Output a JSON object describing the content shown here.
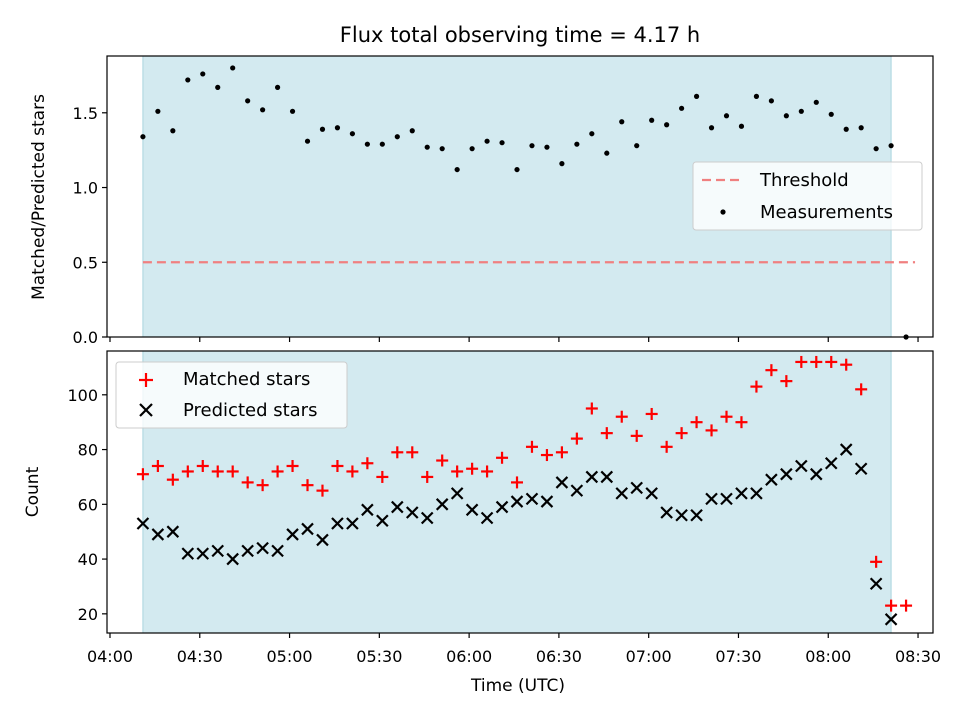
{
  "figure": {
    "title": "Flux total observing time = 4.17 h",
    "xlabel": "Time (UTC)",
    "x_ticks": [
      "04:00",
      "04:30",
      "05:00",
      "05:30",
      "06:00",
      "06:30",
      "07:00",
      "07:30",
      "08:00",
      "08:30"
    ],
    "observing_window": {
      "start": "04:11",
      "end": "08:21"
    },
    "observing_window_color": "#d3eaf0"
  },
  "chart_data": [
    {
      "type": "scatter",
      "panel": "top",
      "title": "Flux total observing time = 4.17 h",
      "ylabel": "Matched/Predicted stars",
      "xlim": [
        "03:59",
        "08:35"
      ],
      "ylim": [
        0.0,
        1.88
      ],
      "y_ticks": [
        "0.0",
        "0.5",
        "1.0",
        "1.5"
      ],
      "legend_position": "center-right",
      "threshold": {
        "name": "Threshold",
        "value": 0.5,
        "x_start": "04:11",
        "x_end": "08:29",
        "color": "#f08080"
      },
      "series": [
        {
          "name": "Measurements",
          "color": "#000000",
          "x": [
            "04:11",
            "04:16",
            "04:21",
            "04:26",
            "04:31",
            "04:36",
            "04:41",
            "04:46",
            "04:51",
            "04:56",
            "05:01",
            "05:06",
            "05:11",
            "05:16",
            "05:21",
            "05:26",
            "05:31",
            "05:36",
            "05:41",
            "05:46",
            "05:51",
            "05:56",
            "06:01",
            "06:06",
            "06:11",
            "06:16",
            "06:21",
            "06:26",
            "06:31",
            "06:36",
            "06:41",
            "06:46",
            "06:51",
            "06:56",
            "07:01",
            "07:06",
            "07:11",
            "07:16",
            "07:21",
            "07:26",
            "07:31",
            "07:36",
            "07:41",
            "07:46",
            "07:51",
            "07:56",
            "08:01",
            "08:06",
            "08:11",
            "08:16",
            "08:21",
            "08:26"
          ],
          "y": [
            1.34,
            1.51,
            1.38,
            1.72,
            1.76,
            1.67,
            1.8,
            1.58,
            1.52,
            1.67,
            1.51,
            1.31,
            1.39,
            1.4,
            1.36,
            1.29,
            1.29,
            1.34,
            1.38,
            1.27,
            1.26,
            1.12,
            1.26,
            1.31,
            1.3,
            1.12,
            1.28,
            1.27,
            1.16,
            1.29,
            1.36,
            1.23,
            1.44,
            1.28,
            1.45,
            1.42,
            1.53,
            1.61,
            1.4,
            1.48,
            1.41,
            1.61,
            1.58,
            1.48,
            1.51,
            1.57,
            1.49,
            1.39,
            1.4,
            1.26,
            1.28,
            0.0
          ]
        }
      ]
    },
    {
      "type": "scatter",
      "panel": "bottom",
      "ylabel": "Count",
      "xlabel": "Time (UTC)",
      "xlim": [
        "03:59",
        "08:35"
      ],
      "ylim": [
        13,
        116
      ],
      "y_ticks": [
        "20",
        "40",
        "60",
        "80",
        "100"
      ],
      "legend_position": "top-left",
      "series": [
        {
          "name": "Matched stars",
          "marker": "plus",
          "color": "#ff0000",
          "x": [
            "04:11",
            "04:16",
            "04:21",
            "04:26",
            "04:31",
            "04:36",
            "04:41",
            "04:46",
            "04:51",
            "04:56",
            "05:01",
            "05:06",
            "05:11",
            "05:16",
            "05:21",
            "05:26",
            "05:31",
            "05:36",
            "05:41",
            "05:46",
            "05:51",
            "05:56",
            "06:01",
            "06:06",
            "06:11",
            "06:16",
            "06:21",
            "06:26",
            "06:31",
            "06:36",
            "06:41",
            "06:46",
            "06:51",
            "06:56",
            "07:01",
            "07:06",
            "07:11",
            "07:16",
            "07:21",
            "07:26",
            "07:31",
            "07:36",
            "07:41",
            "07:46",
            "07:51",
            "07:56",
            "08:01",
            "08:06",
            "08:11",
            "08:16",
            "08:21",
            "08:26"
          ],
          "y": [
            71,
            74,
            69,
            72,
            74,
            72,
            72,
            68,
            67,
            72,
            74,
            67,
            65,
            74,
            72,
            75,
            70,
            79,
            79,
            70,
            76,
            72,
            73,
            72,
            77,
            68,
            81,
            78,
            79,
            84,
            95,
            86,
            92,
            85,
            93,
            81,
            86,
            90,
            87,
            92,
            90,
            103,
            109,
            105,
            112,
            112,
            112,
            111,
            102,
            39,
            23,
            23
          ]
        },
        {
          "name": "Predicted stars",
          "marker": "x",
          "color": "#000000",
          "x": [
            "04:11",
            "04:16",
            "04:21",
            "04:26",
            "04:31",
            "04:36",
            "04:41",
            "04:46",
            "04:51",
            "04:56",
            "05:01",
            "05:06",
            "05:11",
            "05:16",
            "05:21",
            "05:26",
            "05:31",
            "05:36",
            "05:41",
            "05:46",
            "05:51",
            "05:56",
            "06:01",
            "06:06",
            "06:11",
            "06:16",
            "06:21",
            "06:26",
            "06:31",
            "06:36",
            "06:41",
            "06:46",
            "06:51",
            "06:56",
            "07:01",
            "07:06",
            "07:11",
            "07:16",
            "07:21",
            "07:26",
            "07:31",
            "07:36",
            "07:41",
            "07:46",
            "07:51",
            "07:56",
            "08:01",
            "08:06",
            "08:11",
            "08:16",
            "08:21"
          ],
          "y": [
            53,
            49,
            50,
            42,
            42,
            43,
            40,
            43,
            44,
            43,
            49,
            51,
            47,
            53,
            53,
            58,
            54,
            59,
            57,
            55,
            60,
            64,
            58,
            55,
            59,
            61,
            62,
            61,
            68,
            65,
            70,
            70,
            64,
            66,
            64,
            57,
            56,
            56,
            62,
            62,
            64,
            64,
            69,
            71,
            74,
            71,
            75,
            80,
            73,
            31,
            18
          ]
        }
      ]
    }
  ]
}
